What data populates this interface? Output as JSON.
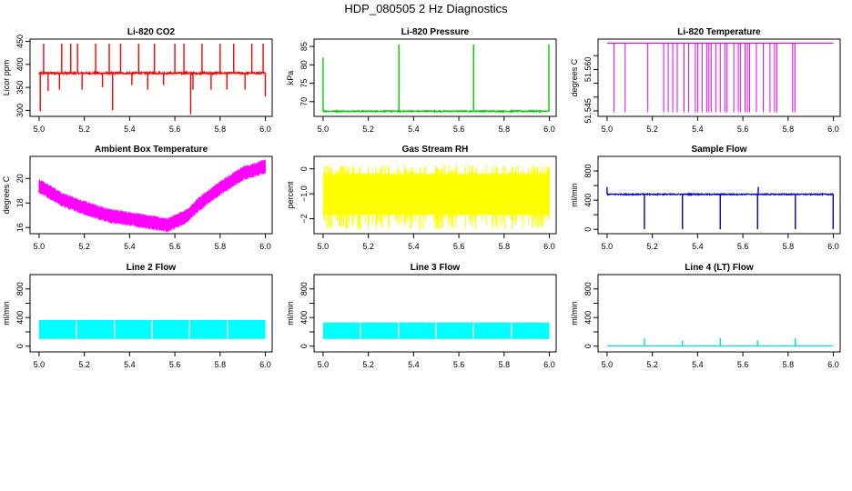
{
  "figure": {
    "title": "HDP_080505  2 Hz Diagnostics"
  },
  "chart_data": [
    {
      "type": "line",
      "title": "Li-820 CO2",
      "xlabel": "",
      "ylabel": "Licor ppm",
      "color": "#ff0000",
      "xlim": [
        4.96,
        6.03
      ],
      "ylim": [
        287,
        455
      ],
      "xticks": [
        5.0,
        5.2,
        5.4,
        5.6,
        5.8,
        6.0
      ],
      "xtick_labels": [
        "5.0",
        "5.2",
        "5.4",
        "5.6",
        "5.8",
        "6.0"
      ],
      "yticks": [
        300,
        350,
        400,
        450
      ],
      "ytick_labels": [
        "300",
        "350",
        "400",
        "450"
      ],
      "baseline": 381,
      "noise": 2,
      "spikes": [
        {
          "x": 5.005,
          "y": 298
        },
        {
          "x": 5.02,
          "y": 445
        },
        {
          "x": 5.04,
          "y": 342
        },
        {
          "x": 5.09,
          "y": 345
        },
        {
          "x": 5.1,
          "y": 445
        },
        {
          "x": 5.14,
          "y": 445
        },
        {
          "x": 5.17,
          "y": 445
        },
        {
          "x": 5.19,
          "y": 345
        },
        {
          "x": 5.25,
          "y": 445
        },
        {
          "x": 5.28,
          "y": 350
        },
        {
          "x": 5.31,
          "y": 445
        },
        {
          "x": 5.325,
          "y": 300
        },
        {
          "x": 5.36,
          "y": 445
        },
        {
          "x": 5.41,
          "y": 355
        },
        {
          "x": 5.44,
          "y": 445
        },
        {
          "x": 5.48,
          "y": 345
        },
        {
          "x": 5.51,
          "y": 445
        },
        {
          "x": 5.55,
          "y": 355
        },
        {
          "x": 5.6,
          "y": 445
        },
        {
          "x": 5.64,
          "y": 445
        },
        {
          "x": 5.67,
          "y": 292
        },
        {
          "x": 5.68,
          "y": 345
        },
        {
          "x": 5.72,
          "y": 445
        },
        {
          "x": 5.76,
          "y": 345
        },
        {
          "x": 5.8,
          "y": 445
        },
        {
          "x": 5.83,
          "y": 345
        },
        {
          "x": 5.86,
          "y": 445
        },
        {
          "x": 5.91,
          "y": 345
        },
        {
          "x": 5.94,
          "y": 445
        },
        {
          "x": 5.99,
          "y": 445
        },
        {
          "x": 6.0,
          "y": 330
        }
      ]
    },
    {
      "type": "line",
      "title": "Li-820 Pressure",
      "xlabel": "",
      "ylabel": "kPa",
      "color": "#00cc00",
      "xlim": [
        4.96,
        6.03
      ],
      "ylim": [
        66,
        87
      ],
      "xticks": [
        5.0,
        5.2,
        5.4,
        5.6,
        5.8,
        6.0
      ],
      "xtick_labels": [
        "5.0",
        "5.2",
        "5.4",
        "5.6",
        "5.8",
        "6.0"
      ],
      "yticks": [
        70,
        75,
        80,
        85
      ],
      "ytick_labels": [
        "70",
        "75",
        "80",
        "85"
      ],
      "baseline": 67.4,
      "noise": 0.15,
      "spikes": [
        {
          "x": 5.0,
          "y": 82
        },
        {
          "x": 5.335,
          "y": 85.5
        },
        {
          "x": 5.665,
          "y": 85.5
        },
        {
          "x": 5.998,
          "y": 85.5
        }
      ]
    },
    {
      "type": "line",
      "title": "Li-820 Temperature",
      "xlabel": "",
      "ylabel": "degrees C",
      "color": "#ee00ee",
      "xlim": [
        4.96,
        6.03
      ],
      "ylim": [
        51.543,
        51.571
      ],
      "xticks": [
        5.0,
        5.2,
        5.4,
        5.6,
        5.8,
        6.0
      ],
      "xtick_labels": [
        "5.0",
        "5.2",
        "5.4",
        "5.6",
        "5.8",
        "6.0"
      ],
      "yticks": [
        51.545,
        51.56
      ],
      "ytick_labels": [
        "51.545",
        "51.560"
      ],
      "yticks_unlabeled": [
        51.55,
        51.555,
        51.565
      ],
      "level_high": 51.5695,
      "level_low": 51.5445,
      "drops": [
        5.03,
        5.08,
        5.18,
        5.25,
        5.27,
        5.29,
        5.31,
        5.34,
        5.36,
        5.39,
        5.4,
        5.42,
        5.44,
        5.45,
        5.46,
        5.48,
        5.5,
        5.52,
        5.53,
        5.56,
        5.58,
        5.59,
        5.61,
        5.62,
        5.63,
        5.66,
        5.69,
        5.72,
        5.74,
        5.75,
        5.82,
        5.83
      ]
    },
    {
      "type": "line",
      "title": "Ambient Box Temperature",
      "xlabel": "",
      "ylabel": "degrees C",
      "color": "#ff00ff",
      "xlim": [
        4.96,
        6.03
      ],
      "ylim": [
        15.5,
        21.8
      ],
      "xticks": [
        5.0,
        5.2,
        5.4,
        5.6,
        5.8,
        6.0
      ],
      "xtick_labels": [
        "5.0",
        "5.2",
        "5.4",
        "5.6",
        "5.8",
        "6.0"
      ],
      "yticks": [
        16,
        18,
        20
      ],
      "ytick_labels": [
        "16",
        "18",
        "20"
      ],
      "trend_x": [
        5.0,
        5.1,
        5.2,
        5.3,
        5.4,
        5.5,
        5.57,
        5.65,
        5.7,
        5.8,
        5.9,
        6.0
      ],
      "trend_y": [
        19.4,
        18.3,
        17.6,
        17.0,
        16.7,
        16.4,
        16.2,
        16.9,
        17.8,
        19.2,
        20.4,
        21.0
      ],
      "band": 0.6
    },
    {
      "type": "line",
      "title": "Gas Stream RH",
      "xlabel": "",
      "ylabel": "percent",
      "color": "#ffff00",
      "xlim": [
        4.96,
        6.03
      ],
      "ylim": [
        -2.6,
        0.5
      ],
      "xticks": [
        5.0,
        5.2,
        5.4,
        5.6,
        5.8,
        6.0
      ],
      "xtick_labels": [
        "5.0",
        "5.2",
        "5.4",
        "5.6",
        "5.8",
        "6.0"
      ],
      "yticks": [
        -2.0,
        -1.0,
        0.0
      ],
      "ytick_labels": [
        "−2",
        "−1.0",
        "0"
      ],
      "band_low": -1.85,
      "band_high": -0.2,
      "extreme_low": -2.45,
      "extreme_high": 0.15
    },
    {
      "type": "line",
      "title": "Sample Flow",
      "xlabel": "",
      "ylabel": "ml/min",
      "color": "#0000cc",
      "xlim": [
        4.96,
        6.03
      ],
      "ylim": [
        -60,
        1000
      ],
      "xticks": [
        5.0,
        5.2,
        5.4,
        5.6,
        5.8,
        6.0
      ],
      "xtick_labels": [
        "5.0",
        "5.2",
        "5.4",
        "5.6",
        "5.8",
        "6.0"
      ],
      "yticks": [
        0,
        400,
        800
      ],
      "ytick_labels": [
        "0",
        "400",
        "800"
      ],
      "yticks_unlabeled": [
        200,
        600
      ],
      "baseline": 480,
      "noise": 7,
      "spikes": [
        {
          "x": 5.0,
          "y": 580
        },
        {
          "x": 5.165,
          "y": 0
        },
        {
          "x": 5.333,
          "y": 0
        },
        {
          "x": 5.5,
          "y": 0
        },
        {
          "x": 5.665,
          "y": 0
        },
        {
          "x": 5.668,
          "y": 580
        },
        {
          "x": 5.832,
          "y": 0
        },
        {
          "x": 5.999,
          "y": 0
        }
      ]
    },
    {
      "type": "line",
      "title": "Line 2 Flow",
      "xlabel": "",
      "ylabel": "ml/min",
      "color": "#00ffff",
      "xlim": [
        4.96,
        6.03
      ],
      "ylim": [
        -80,
        1000
      ],
      "xticks": [
        5.0,
        5.2,
        5.4,
        5.6,
        5.8,
        6.0
      ],
      "xtick_labels": [
        "5.0",
        "5.2",
        "5.4",
        "5.6",
        "5.8",
        "6.0"
      ],
      "yticks": [
        0,
        400,
        800
      ],
      "ytick_labels": [
        "0",
        "400",
        "800"
      ],
      "yticks_unlabeled": [
        200,
        600
      ],
      "band_low": 100,
      "band_high": 365,
      "gaps": [
        5.165,
        5.333,
        5.5,
        5.665,
        5.832
      ]
    },
    {
      "type": "line",
      "title": "Line 3 Flow",
      "xlabel": "",
      "ylabel": "ml/min",
      "color": "#00ffff",
      "xlim": [
        4.96,
        6.03
      ],
      "ylim": [
        -80,
        1000
      ],
      "xticks": [
        5.0,
        5.2,
        5.4,
        5.6,
        5.8,
        6.0
      ],
      "xtick_labels": [
        "5.0",
        "5.2",
        "5.4",
        "5.6",
        "5.8",
        "6.0"
      ],
      "yticks": [
        0,
        400,
        800
      ],
      "ytick_labels": [
        "0",
        "400",
        "800"
      ],
      "yticks_unlabeled": [
        200,
        600
      ],
      "band_low": 100,
      "band_high": 330,
      "gaps": [
        5.165,
        5.333,
        5.5,
        5.665,
        5.832
      ]
    },
    {
      "type": "line",
      "title": "Line 4 (LT) Flow",
      "xlabel": "",
      "ylabel": "ml/min",
      "color": "#00dddd",
      "xlim": [
        4.96,
        6.03
      ],
      "ylim": [
        -80,
        1000
      ],
      "xticks": [
        5.0,
        5.2,
        5.4,
        5.6,
        5.8,
        6.0
      ],
      "xtick_labels": [
        "5.0",
        "5.2",
        "5.4",
        "5.6",
        "5.8",
        "6.0"
      ],
      "yticks": [
        0,
        400,
        800
      ],
      "ytick_labels": [
        "0",
        "400",
        "800"
      ],
      "yticks_unlabeled": [
        200,
        600
      ],
      "baseline": 5,
      "noise": 2,
      "spikes": [
        {
          "x": 5.165,
          "y": 110
        },
        {
          "x": 5.333,
          "y": 80
        },
        {
          "x": 5.5,
          "y": 110
        },
        {
          "x": 5.665,
          "y": 80
        },
        {
          "x": 5.832,
          "y": 110
        }
      ]
    }
  ]
}
